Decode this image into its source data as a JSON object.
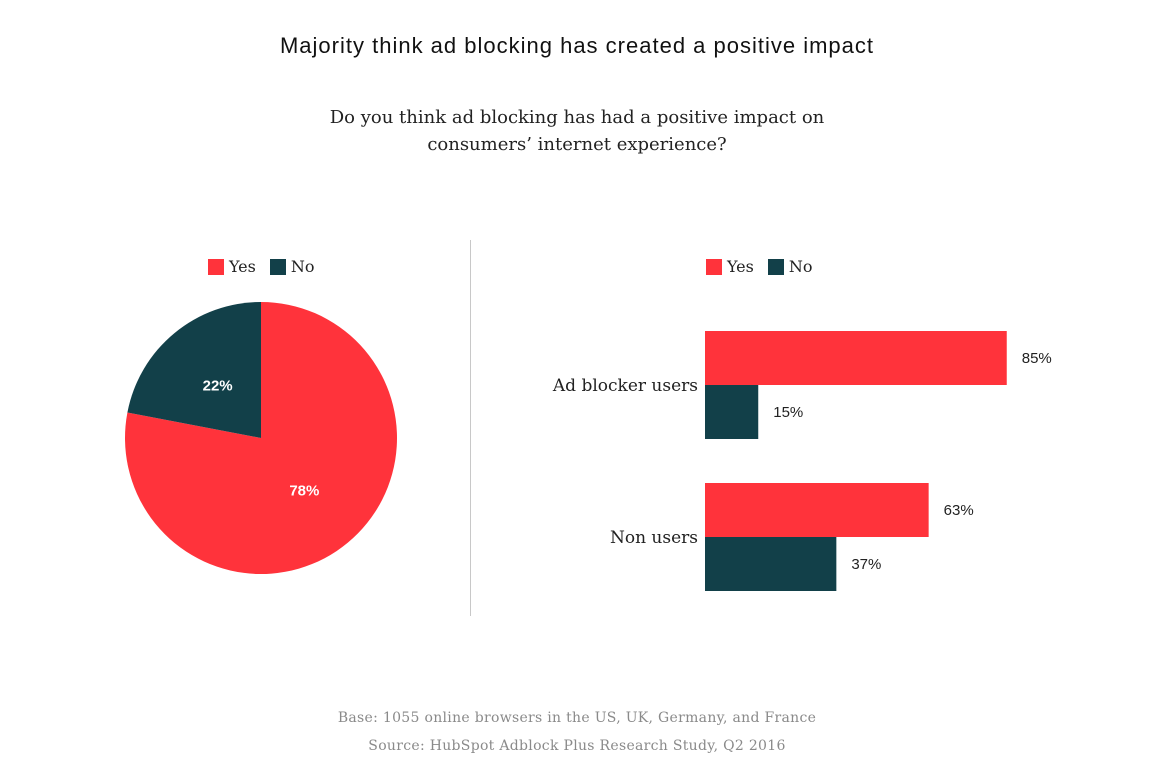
{
  "title": "Majority think ad blocking has created a positive impact",
  "subtitle_line1": "Do you think ad blocking has had a positive impact on",
  "subtitle_line2": "consumers’ internet experience?",
  "colors": {
    "yes": "#ff333b",
    "no": "#124049"
  },
  "footer": {
    "base": "Base: 1055 online browsers in the US, UK, Germany, and France",
    "source": "Source: HubSpot Adblock Plus Research Study, Q2 2016"
  },
  "chart_data": [
    {
      "type": "pie",
      "legend": [
        "Yes",
        "No"
      ],
      "legend_position": "top",
      "slices": [
        {
          "label": "Yes",
          "value": 78,
          "data_label": "78%"
        },
        {
          "label": "No",
          "value": 22,
          "data_label": "22%"
        }
      ]
    },
    {
      "type": "bar",
      "orientation": "horizontal",
      "legend": [
        "Yes",
        "No"
      ],
      "legend_position": "top",
      "categories": [
        "Ad blocker users",
        "Non users"
      ],
      "series": [
        {
          "name": "Yes",
          "values": [
            85,
            63
          ],
          "data_labels": [
            "85%",
            "63%"
          ]
        },
        {
          "name": "No",
          "values": [
            15,
            37
          ],
          "data_labels": [
            "15%",
            "37%"
          ]
        }
      ],
      "xlim": [
        0,
        100
      ]
    }
  ]
}
